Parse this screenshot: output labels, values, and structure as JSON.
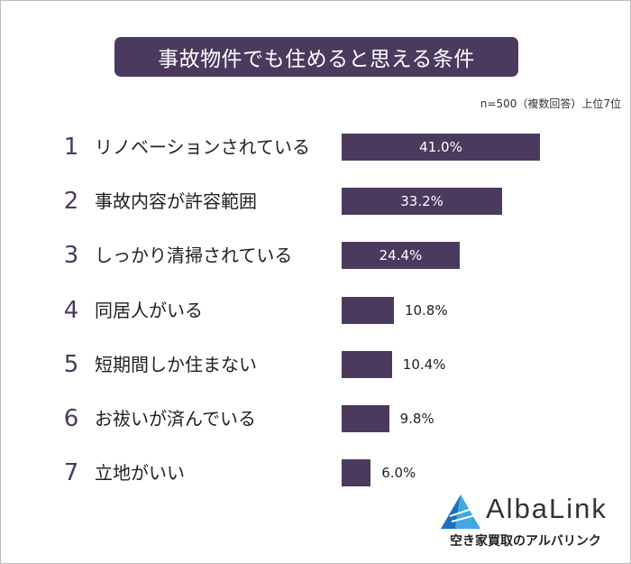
{
  "chart_data": {
    "type": "bar",
    "orientation": "horizontal",
    "title": "事故物件でも住めると思える条件",
    "note": "n=500（複数回答）上位7位",
    "categories": [
      "リノベーションされている",
      "事故内容が許容範囲",
      "しっかり清掃されている",
      "同居人がいる",
      "短期間しか住まない",
      "お祓いが済んでいる",
      "立地がいい"
    ],
    "ranks": [
      "1",
      "2",
      "3",
      "4",
      "5",
      "6",
      "7"
    ],
    "values": [
      41.0,
      33.2,
      24.4,
      10.8,
      10.4,
      9.8,
      6.0
    ],
    "value_labels": [
      "41.0%",
      "33.2%",
      "24.4%",
      "10.8%",
      "10.4%",
      "9.8%",
      "6.0%"
    ],
    "unit": "%",
    "xlim": [
      0,
      41
    ],
    "bar_color": "#4b3a5e"
  },
  "logo": {
    "name": "AlbaLink",
    "tagline": "空き家買取のアルバリンク"
  }
}
